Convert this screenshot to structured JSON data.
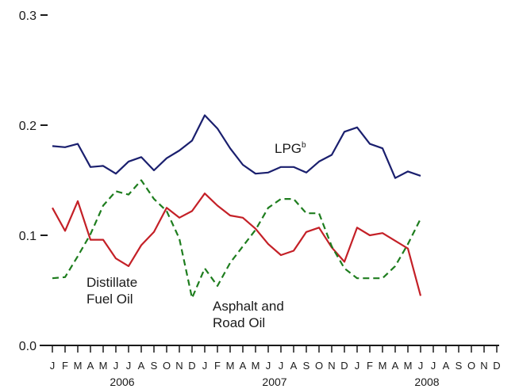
{
  "chart_data": {
    "type": "line",
    "title": "",
    "xlabel": "",
    "ylabel": "",
    "ylim": [
      0,
      0.3
    ],
    "y_ticks": [
      "0.0",
      "0.1",
      "0.2",
      "0.3"
    ],
    "month_labels": [
      "J",
      "F",
      "M",
      "A",
      "M",
      "J",
      "J",
      "A",
      "S",
      "O",
      "N",
      "D",
      "J",
      "F",
      "M",
      "A",
      "M",
      "J",
      "J",
      "A",
      "S",
      "O",
      "N",
      "D",
      "J",
      "F",
      "M",
      "A",
      "M",
      "J",
      "J",
      "A",
      "S",
      "O",
      "N",
      "D"
    ],
    "year_labels": [
      "2006",
      "2007",
      "2008"
    ],
    "grid": false,
    "legend": "inline labels",
    "series": [
      {
        "name": "LPG",
        "label_lines": [
          "LPG"
        ],
        "superscript": "b",
        "color": "#1a1f6e",
        "dash": "solid",
        "values": [
          0.181,
          0.18,
          0.183,
          0.162,
          0.163,
          0.156,
          0.167,
          0.171,
          0.159,
          0.17,
          0.177,
          0.186,
          0.209,
          0.197,
          0.179,
          0.164,
          0.156,
          0.157,
          0.162,
          0.162,
          0.157,
          0.167,
          0.173,
          0.194,
          0.198,
          0.183,
          0.179,
          0.152,
          0.158,
          0.154
        ]
      },
      {
        "name": "Distillate Fuel Oil",
        "label_lines": [
          "Distillate",
          "Fuel Oil"
        ],
        "color": "#c42027",
        "dash": "solid",
        "values": [
          0.125,
          0.104,
          0.131,
          0.096,
          0.096,
          0.079,
          0.072,
          0.091,
          0.103,
          0.125,
          0.116,
          0.122,
          0.138,
          0.127,
          0.118,
          0.116,
          0.106,
          0.092,
          0.082,
          0.086,
          0.103,
          0.107,
          0.089,
          0.076,
          0.107,
          0.1,
          0.102,
          0.095,
          0.088,
          0.045
        ]
      },
      {
        "name": "Asphalt and Road Oil",
        "label_lines": [
          "Asphalt and",
          "Road Oil"
        ],
        "color": "#1e7d1e",
        "dash": "dashed",
        "values": [
          0.061,
          0.062,
          0.081,
          0.101,
          0.127,
          0.14,
          0.137,
          0.15,
          0.133,
          0.122,
          0.097,
          0.043,
          0.07,
          0.054,
          0.075,
          0.09,
          0.105,
          0.125,
          0.133,
          0.133,
          0.12,
          0.12,
          0.09,
          0.07,
          0.061,
          0.061,
          0.061,
          0.072,
          0.092,
          0.115
        ]
      }
    ]
  }
}
